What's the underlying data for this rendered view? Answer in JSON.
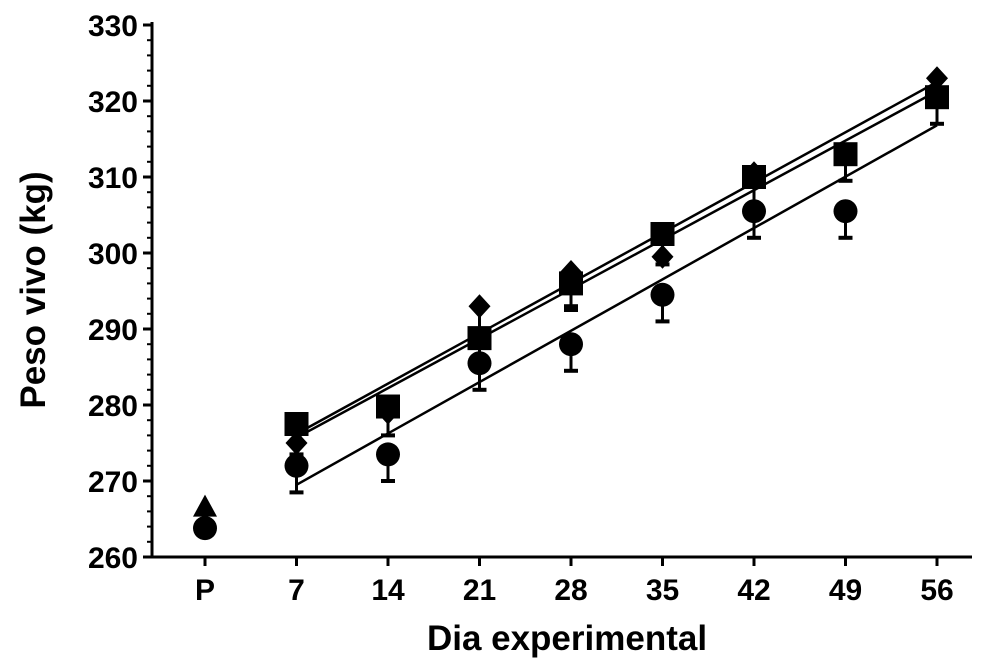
{
  "chart_data": {
    "type": "scatter",
    "title": "",
    "xlabel": "Dia experimental",
    "ylabel": "Peso vivo (kg)",
    "x_categories": [
      "P",
      "7",
      "14",
      "21",
      "28",
      "35",
      "42",
      "49",
      "56"
    ],
    "ylim": [
      260,
      330
    ],
    "y_ticks": [
      260,
      270,
      280,
      290,
      300,
      310,
      320,
      330
    ],
    "grid": false,
    "legend": "none",
    "series": [
      {
        "marker": "triangle",
        "points": [
          {
            "x": "P",
            "y": 266.5
          }
        ]
      },
      {
        "marker": "diamond",
        "points": [
          {
            "x": "P",
            "y": 264.0
          },
          {
            "x": "7",
            "y": 275.0
          },
          {
            "x": "14",
            "y": 279.0
          },
          {
            "x": "21",
            "y": 293.0
          },
          {
            "x": "28",
            "y": 297.5
          },
          {
            "x": "35",
            "y": 299.5
          },
          {
            "x": "42",
            "y": 310.5
          },
          {
            "x": "49",
            "y": 313.0
          },
          {
            "x": "56",
            "y": 323.0
          }
        ],
        "error_bars": [
          {
            "x": "21",
            "low": 289.0
          },
          {
            "x": "28",
            "low": 293.0
          },
          {
            "x": "42",
            "low": 306.5
          }
        ],
        "fit_line": {
          "x_start": "7",
          "y_start": 276.2,
          "x_end": "56",
          "y_end": 322.5
        }
      },
      {
        "marker": "square",
        "points": [
          {
            "x": "7",
            "y": 277.5
          },
          {
            "x": "14",
            "y": 279.8
          },
          {
            "x": "21",
            "y": 288.8
          },
          {
            "x": "28",
            "y": 296.0
          },
          {
            "x": "35",
            "y": 302.5
          },
          {
            "x": "42",
            "y": 310.0
          },
          {
            "x": "49",
            "y": 313.0
          },
          {
            "x": "56",
            "y": 320.5
          }
        ],
        "error_bars": [
          {
            "x": "7",
            "low": 273.5
          },
          {
            "x": "14",
            "low": 276.0
          },
          {
            "x": "21",
            "low": 285.0
          },
          {
            "x": "28",
            "low": 292.5
          },
          {
            "x": "35",
            "low": 298.5
          },
          {
            "x": "42",
            "low": 306.0
          },
          {
            "x": "49",
            "low": 309.5
          },
          {
            "x": "56",
            "low": 317.0
          }
        ],
        "fit_line": {
          "x_start": "7",
          "y_start": 275.7,
          "x_end": "56",
          "y_end": 321.3
        }
      },
      {
        "marker": "circle",
        "points": [
          {
            "x": "P",
            "y": 263.8
          },
          {
            "x": "7",
            "y": 272.0
          },
          {
            "x": "14",
            "y": 273.5
          },
          {
            "x": "21",
            "y": 285.5
          },
          {
            "x": "28",
            "y": 288.0
          },
          {
            "x": "35",
            "y": 294.5
          },
          {
            "x": "42",
            "y": 305.5
          },
          {
            "x": "49",
            "y": 305.5
          },
          {
            "x": "56",
            "y": 320.5
          }
        ],
        "error_bars": [
          {
            "x": "7",
            "low": 268.5
          },
          {
            "x": "14",
            "low": 270.0
          },
          {
            "x": "21",
            "low": 282.0
          },
          {
            "x": "28",
            "low": 284.5
          },
          {
            "x": "35",
            "low": 291.0
          },
          {
            "x": "42",
            "low": 302.0
          },
          {
            "x": "49",
            "low": 302.0
          }
        ],
        "fit_line": {
          "x_start": "7",
          "y_start": 269.5,
          "x_end": "56",
          "y_end": 316.8
        }
      }
    ]
  }
}
